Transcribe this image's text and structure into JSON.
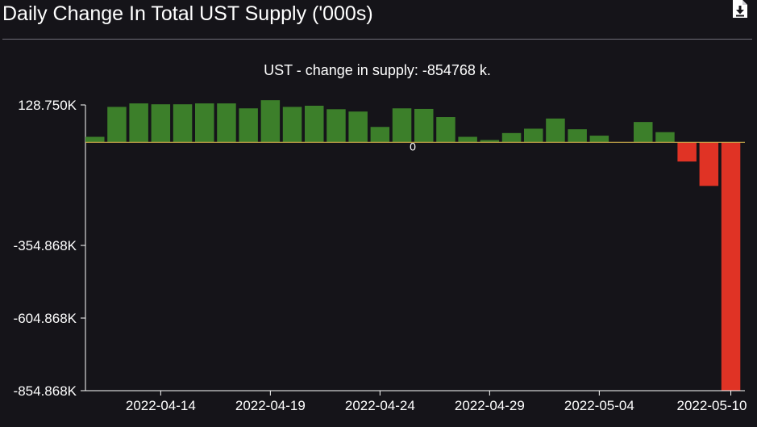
{
  "header": {
    "title": "Daily Change In Total UST Supply ('000s)",
    "download_icon": "download-file-icon"
  },
  "colors": {
    "background": "#151419",
    "positive": "#3c7f2a",
    "negative": "#e03325",
    "zero_line": "#c9a84b",
    "divider": "#6f6e78"
  },
  "chart_data": {
    "type": "bar",
    "title": "UST - change in supply: -854768 k.",
    "xlabel": "",
    "ylabel": "",
    "ylim": [
      -854.868,
      128.75
    ],
    "y_ticks": [
      {
        "value": 128.75,
        "label": "128.750K"
      },
      {
        "value": -354.868,
        "label": "-354.868K"
      },
      {
        "value": -604.868,
        "label": "-604.868K"
      },
      {
        "value": -854.868,
        "label": "-854.868K"
      }
    ],
    "zero_label": "0",
    "x_ticks": [
      "2022-04-14",
      "2022-04-19",
      "2022-04-24",
      "2022-04-29",
      "2022-05-04",
      "2022-05-10"
    ],
    "categories": [
      "2022-04-11",
      "2022-04-12",
      "2022-04-13",
      "2022-04-14",
      "2022-04-15",
      "2022-04-16",
      "2022-04-17",
      "2022-04-18",
      "2022-04-19",
      "2022-04-20",
      "2022-04-21",
      "2022-04-22",
      "2022-04-23",
      "2022-04-24",
      "2022-04-25",
      "2022-04-26",
      "2022-04-27",
      "2022-04-28",
      "2022-04-29",
      "2022-04-30",
      "2022-05-01",
      "2022-05-02",
      "2022-05-03",
      "2022-05-04",
      "2022-05-05",
      "2022-05-06",
      "2022-05-07",
      "2022-05-08",
      "2022-05-09",
      "2022-05-10"
    ],
    "values": [
      19,
      122,
      134,
      131,
      131,
      134,
      134,
      117,
      145,
      122,
      126,
      114,
      106,
      53,
      117,
      115,
      87,
      19,
      8,
      32,
      47,
      82,
      45,
      23,
      0,
      70,
      35,
      -66,
      -150,
      -855
    ],
    "grid": false,
    "legend": "none"
  }
}
